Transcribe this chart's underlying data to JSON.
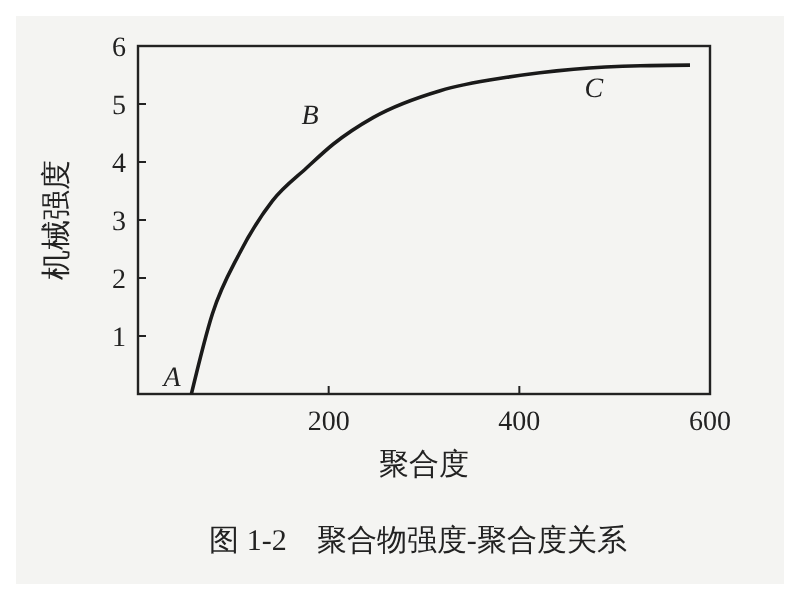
{
  "chart_data": {
    "type": "line",
    "title": "图 1-2　聚合物强度-聚合度关系",
    "xlabel": "聚合度",
    "ylabel": "机械强度",
    "x": [
      56,
      78,
      106,
      141,
      177,
      205,
      247,
      317,
      387,
      457,
      527,
      579
    ],
    "values": [
      0,
      1.38,
      2.41,
      3.33,
      3.9,
      4.31,
      4.77,
      5.23,
      5.46,
      5.6,
      5.66,
      5.67
    ],
    "color": "#1a1a1a",
    "xlim": [
      0,
      600
    ],
    "ylim": [
      0,
      6
    ],
    "xticks": [
      200,
      400,
      600
    ],
    "yticks": [
      1,
      2,
      3,
      4,
      5,
      6
    ],
    "annotations": [
      {
        "text": "A",
        "x": 56,
        "y": 0
      },
      {
        "text": "B",
        "x": 205,
        "y": 4.31
      },
      {
        "text": "C",
        "x": 460,
        "y": 5.6
      }
    ],
    "grid": false,
    "marker": "none",
    "line_style": "solid"
  }
}
